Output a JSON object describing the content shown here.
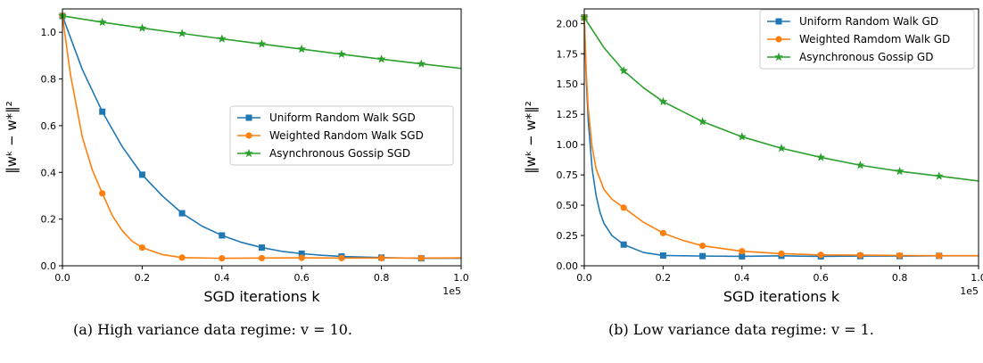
{
  "chart_data": [
    {
      "type": "line",
      "caption": "(a) High variance data regime: v = 10.",
      "ylabel": "‖wᵏ − w*‖²",
      "xlabel": "SGD iterations k",
      "x_offset_label": "1e5",
      "xlim": [
        0.0,
        1.0
      ],
      "ylim": [
        0.0,
        1.1
      ],
      "xticks": [
        0.0,
        0.2,
        0.4,
        0.6,
        0.8,
        1.0
      ],
      "xtick_labels": [
        "0.0",
        "0.2",
        "0.4",
        "0.6",
        "0.8",
        "1.0"
      ],
      "yticks": [
        0.0,
        0.2,
        0.4,
        0.6,
        0.8,
        1.0
      ],
      "ytick_labels": [
        "0.0",
        "0.2",
        "0.4",
        "0.6",
        "0.8",
        "1.0"
      ],
      "legend_position": "center-right",
      "grid": false,
      "series": [
        {
          "name": "Uniform Random Walk SGD",
          "color": "#1f77b4",
          "marker": "square",
          "x": [
            0.0,
            0.05,
            0.1,
            0.15,
            0.2,
            0.25,
            0.3,
            0.35,
            0.4,
            0.45,
            0.5,
            0.55,
            0.6,
            0.65,
            0.7,
            0.8,
            0.9,
            1.0
          ],
          "y": [
            1.07,
            0.84,
            0.66,
            0.51,
            0.39,
            0.3,
            0.225,
            0.17,
            0.13,
            0.1,
            0.078,
            0.062,
            0.052,
            0.045,
            0.04,
            0.035,
            0.032,
            0.032
          ],
          "marker_x": [
            0.0,
            0.1,
            0.2,
            0.3,
            0.4,
            0.5,
            0.6,
            0.7,
            0.8,
            0.9
          ]
        },
        {
          "name": "Weighted Random Walk SGD",
          "color": "#ff7f0e",
          "marker": "circle",
          "x": [
            0.0,
            0.02,
            0.05,
            0.075,
            0.1,
            0.125,
            0.15,
            0.175,
            0.2,
            0.25,
            0.3,
            0.4,
            0.5,
            0.6,
            0.7,
            0.8,
            0.9,
            1.0
          ],
          "y": [
            1.07,
            0.82,
            0.55,
            0.41,
            0.31,
            0.215,
            0.15,
            0.105,
            0.078,
            0.048,
            0.035,
            0.032,
            0.033,
            0.034,
            0.033,
            0.033,
            0.033,
            0.034
          ],
          "marker_x": [
            0.0,
            0.1,
            0.2,
            0.3,
            0.4,
            0.5,
            0.6,
            0.7,
            0.8,
            0.9
          ]
        },
        {
          "name": "Asynchronous Gossip SGD",
          "color": "#2ca02c",
          "marker": "star",
          "x": [
            0.0,
            0.1,
            0.2,
            0.3,
            0.4,
            0.5,
            0.6,
            0.7,
            0.8,
            0.9,
            1.0
          ],
          "y": [
            1.07,
            1.043,
            1.018,
            0.995,
            0.972,
            0.95,
            0.928,
            0.906,
            0.885,
            0.865,
            0.845
          ],
          "marker_x": [
            0.0,
            0.1,
            0.2,
            0.3,
            0.4,
            0.5,
            0.6,
            0.7,
            0.8,
            0.9
          ]
        }
      ]
    },
    {
      "type": "line",
      "caption": "(b) Low variance data regime: v = 1.",
      "ylabel": "‖wᵏ − w*‖²",
      "xlabel": "SGD iterations k",
      "x_offset_label": "1e5",
      "xlim": [
        0.0,
        1.0
      ],
      "ylim": [
        0.0,
        2.12
      ],
      "xticks": [
        0.0,
        0.2,
        0.4,
        0.6,
        0.8,
        1.0
      ],
      "xtick_labels": [
        "0.0",
        "0.2",
        "0.4",
        "0.6",
        "0.8",
        "1.0"
      ],
      "yticks": [
        0.0,
        0.25,
        0.5,
        0.75,
        1.0,
        1.25,
        1.5,
        1.75,
        2.0
      ],
      "ytick_labels": [
        "0.00",
        "0.25",
        "0.50",
        "0.75",
        "1.00",
        "1.25",
        "1.50",
        "1.75",
        "2.00"
      ],
      "legend_position": "top-right",
      "grid": false,
      "series": [
        {
          "name": "Uniform Random Walk GD",
          "color": "#1f77b4",
          "marker": "square",
          "x": [
            0.0,
            0.005,
            0.01,
            0.02,
            0.03,
            0.04,
            0.05,
            0.07,
            0.1,
            0.15,
            0.2,
            0.3,
            0.4,
            0.5,
            0.6,
            0.7,
            0.8,
            0.9,
            1.0
          ],
          "y": [
            2.05,
            1.55,
            1.2,
            0.8,
            0.58,
            0.44,
            0.35,
            0.25,
            0.175,
            0.11,
            0.085,
            0.08,
            0.078,
            0.082,
            0.078,
            0.08,
            0.08,
            0.082,
            0.082
          ],
          "marker_x": [
            0.0,
            0.1,
            0.2,
            0.3,
            0.4,
            0.5,
            0.6,
            0.7,
            0.8,
            0.9
          ]
        },
        {
          "name": "Weighted Ramdom Walk GD",
          "color": "#ff7f0e",
          "marker": "circle",
          "x": [
            0.0,
            0.005,
            0.01,
            0.02,
            0.03,
            0.05,
            0.07,
            0.1,
            0.15,
            0.2,
            0.25,
            0.3,
            0.4,
            0.5,
            0.6,
            0.7,
            0.8,
            0.9,
            1.0
          ],
          "y": [
            2.05,
            1.6,
            1.3,
            0.98,
            0.8,
            0.63,
            0.55,
            0.48,
            0.36,
            0.27,
            0.21,
            0.165,
            0.12,
            0.1,
            0.09,
            0.088,
            0.085,
            0.083,
            0.083
          ],
          "marker_x": [
            0.0,
            0.1,
            0.2,
            0.3,
            0.4,
            0.5,
            0.6,
            0.7,
            0.8,
            0.9
          ]
        },
        {
          "name": "Asynchronous Gossip GD",
          "color": "#2ca02c",
          "marker": "star",
          "x": [
            0.0,
            0.05,
            0.1,
            0.15,
            0.2,
            0.3,
            0.4,
            0.5,
            0.6,
            0.7,
            0.8,
            0.9,
            1.0
          ],
          "y": [
            2.05,
            1.8,
            1.61,
            1.47,
            1.355,
            1.19,
            1.065,
            0.97,
            0.895,
            0.83,
            0.78,
            0.74,
            0.7
          ],
          "marker_x": [
            0.0,
            0.1,
            0.2,
            0.3,
            0.4,
            0.5,
            0.6,
            0.7,
            0.8,
            0.9
          ]
        }
      ]
    }
  ]
}
